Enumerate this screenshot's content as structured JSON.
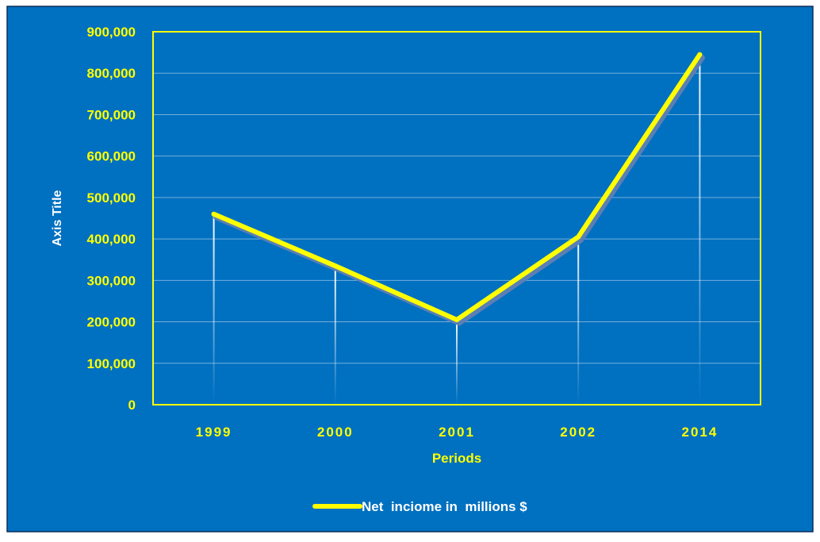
{
  "colors": {
    "background": "#0070c0",
    "line": "#ffff00",
    "axis_labels": "#ffff00",
    "titles": "#ffffff",
    "drop_lines": "#ffffff"
  },
  "chart_data": {
    "type": "line",
    "categories": [
      "1999",
      "2000",
      "2001",
      "2002",
      "2014"
    ],
    "series": [
      {
        "name": "Net  inciome in  millions $",
        "values": [
          460000,
          335000,
          205000,
          405000,
          845000
        ]
      }
    ],
    "xlabel": "Periods",
    "ylabel": "Axis Title",
    "ylim": [
      0,
      900000
    ],
    "yticks": [
      "0",
      "100,000",
      "200,000",
      "300,000",
      "400,000",
      "500,000",
      "600,000",
      "700,000",
      "800,000",
      "900,000"
    ],
    "grid": true,
    "legend": "bottom"
  }
}
